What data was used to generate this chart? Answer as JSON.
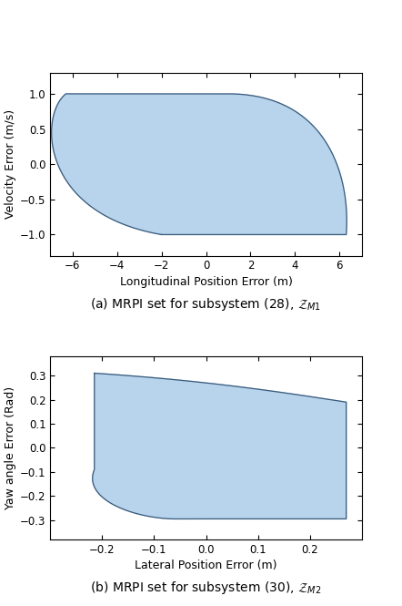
{
  "plot1": {
    "caption": "(a) MRPI set for subsystem (28), $\\mathcal{Z}_{M1}$",
    "xlabel": "Longitudinal Position Error (m)",
    "ylabel": "Velocity Error (m/s)",
    "xlim": [
      -7,
      7
    ],
    "ylim": [
      -1.3,
      1.3
    ],
    "xticks": [
      -6,
      -4,
      -2,
      0,
      2,
      4,
      6
    ],
    "yticks": [
      -1,
      -0.5,
      0,
      0.5,
      1
    ],
    "fill_color": "#b8d4ed",
    "edge_color": "#3a5a7a"
  },
  "plot2": {
    "caption": "(b) MRPI set for subsystem (30), $\\mathcal{Z}_{M2}$",
    "xlabel": "Lateral Position Error (m)",
    "ylabel": "Yaw angle Error (Rad)",
    "xlim": [
      -0.3,
      0.3
    ],
    "ylim": [
      -0.38,
      0.38
    ],
    "xticks": [
      -0.2,
      -0.1,
      0,
      0.1,
      0.2
    ],
    "yticks": [
      -0.3,
      -0.2,
      -0.1,
      0,
      0.1,
      0.2,
      0.3
    ],
    "fill_color": "#b8d4ed",
    "edge_color": "#3a5a7a"
  },
  "fig_width": 4.42,
  "fig_height": 6.65,
  "dpi": 100
}
